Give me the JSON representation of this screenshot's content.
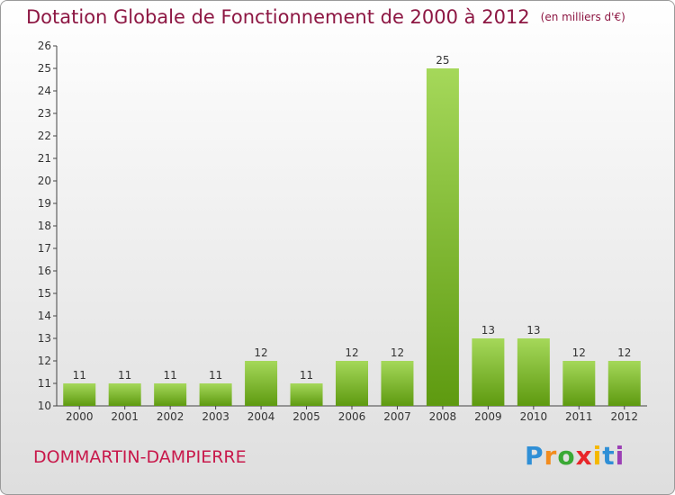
{
  "header": {
    "title": "Dotation Globale de Fonctionnement de 2000 à 2012",
    "unit": "(en milliers d'€)"
  },
  "footer": {
    "commune": "DOMMARTIN-DAMPIERRE",
    "logo_letters": [
      "P",
      "r",
      "o",
      "x",
      "i",
      "t",
      "i"
    ],
    "logo_colors": [
      "#2f8fd6",
      "#f28c1e",
      "#3aa935",
      "#e8262a",
      "#f5b800",
      "#2f8fd6",
      "#9b3fb5"
    ]
  },
  "chart_data": {
    "type": "bar",
    "categories": [
      "2000",
      "2001",
      "2002",
      "2003",
      "2004",
      "2005",
      "2006",
      "2007",
      "2008",
      "2009",
      "2010",
      "2011",
      "2012"
    ],
    "values": [
      11,
      11,
      11,
      11,
      12,
      11,
      12,
      12,
      25,
      13,
      13,
      12,
      12
    ],
    "ylim": [
      10,
      26
    ],
    "yticks": [
      10,
      11,
      12,
      13,
      14,
      15,
      16,
      17,
      18,
      19,
      20,
      21,
      22,
      23,
      24,
      25,
      26
    ],
    "grid": false,
    "bar_color": "#7cb82f"
  }
}
